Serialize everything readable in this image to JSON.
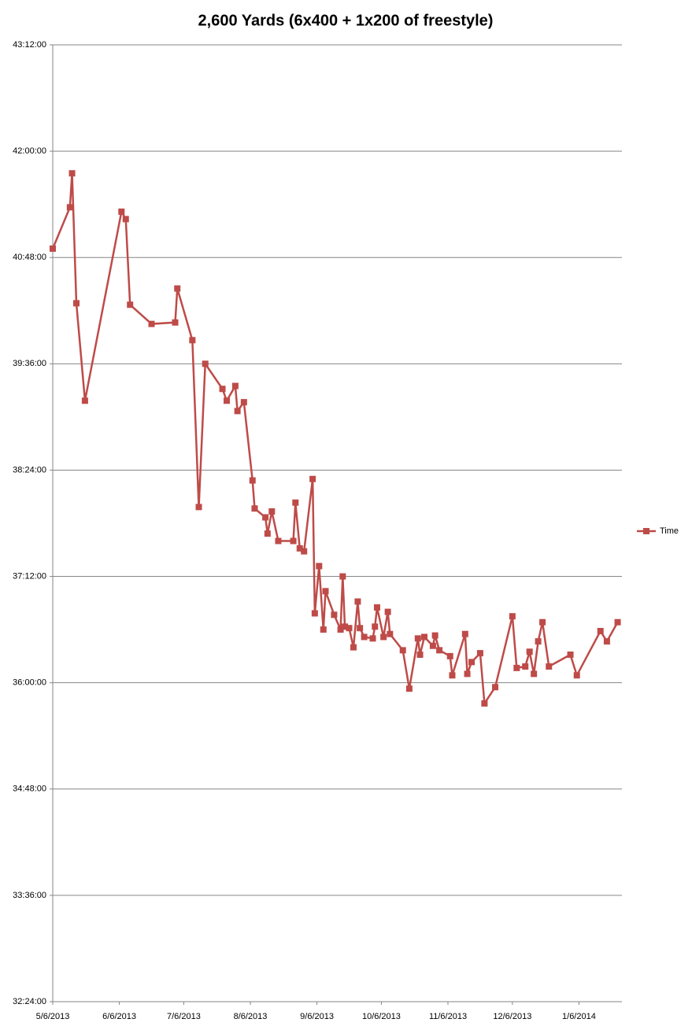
{
  "chart_data": {
    "type": "line",
    "title": "2,600 Yards (6x400 + 1x200 of freestyle)",
    "x": [
      "2013-05-06",
      "2013-05-14",
      "2013-05-15",
      "2013-05-17",
      "2013-05-21",
      "2013-06-07",
      "2013-06-09",
      "2013-06-11",
      "2013-06-21",
      "2013-07-02",
      "2013-07-03",
      "2013-07-10",
      "2013-07-13",
      "2013-07-16",
      "2013-07-24",
      "2013-07-26",
      "2013-07-30",
      "2013-07-31",
      "2013-08-03",
      "2013-08-07",
      "2013-08-08",
      "2013-08-13",
      "2013-08-14",
      "2013-08-16",
      "2013-08-19",
      "2013-08-26",
      "2013-08-27",
      "2013-08-29",
      "2013-08-31",
      "2013-09-04",
      "2013-09-05",
      "2013-09-07",
      "2013-09-09",
      "2013-09-10",
      "2013-09-14",
      "2013-09-17",
      "2013-09-18",
      "2013-09-19",
      "2013-09-21",
      "2013-09-23",
      "2013-09-25",
      "2013-09-26",
      "2013-09-28",
      "2013-10-02",
      "2013-10-03",
      "2013-10-04",
      "2013-10-07",
      "2013-10-09",
      "2013-10-10",
      "2013-10-16",
      "2013-10-19",
      "2013-10-23",
      "2013-10-24",
      "2013-10-26",
      "2013-10-30",
      "2013-10-31",
      "2013-11-02",
      "2013-11-07",
      "2013-11-08",
      "2013-11-14",
      "2013-11-15",
      "2013-11-17",
      "2013-11-21",
      "2013-11-23",
      "2013-11-28",
      "2013-12-06",
      "2013-12-08",
      "2013-12-12",
      "2013-12-14",
      "2013-12-16",
      "2013-12-18",
      "2013-12-20",
      "2013-12-23",
      "2014-01-02",
      "2014-01-05",
      "2014-01-16",
      "2014-01-19",
      "2014-01-24"
    ],
    "series": [
      {
        "name": "Time",
        "color": "#be4b48",
        "values": [
          2454,
          2482,
          2505,
          2417,
          2351,
          2479,
          2474,
          2416,
          2403,
          2404,
          2427,
          2392,
          2279,
          2376,
          2359,
          2351,
          2361,
          2344,
          2350,
          2297,
          2278,
          2272,
          2261,
          2276,
          2256,
          2256,
          2282,
          2251,
          2249,
          2298,
          2207,
          2239,
          2196,
          2222,
          2206,
          2196,
          2232,
          2198,
          2197,
          2184,
          2215,
          2197,
          2191,
          2190,
          2198,
          2211,
          2191,
          2208,
          2193,
          2182,
          2156,
          2190,
          2179,
          2191,
          2185,
          2192,
          2182,
          2178,
          2165,
          2193,
          2166,
          2174,
          2180,
          2146,
          2157,
          2205,
          2170,
          2171,
          2181,
          2166,
          2188,
          2201,
          2171,
          2179,
          2165,
          2195,
          2188,
          2201
        ]
      }
    ],
    "xlim": [
      "2013-05-06",
      "2014-01-26"
    ],
    "xticks": [
      {
        "value": "2013-05-06",
        "label": "5/6/2013"
      },
      {
        "value": "2013-06-06",
        "label": "6/6/2013"
      },
      {
        "value": "2013-07-06",
        "label": "7/6/2013"
      },
      {
        "value": "2013-08-06",
        "label": "8/6/2013"
      },
      {
        "value": "2013-09-06",
        "label": "9/6/2013"
      },
      {
        "value": "2013-10-06",
        "label": "10/6/2013"
      },
      {
        "value": "2013-11-06",
        "label": "11/6/2013"
      },
      {
        "value": "2013-12-06",
        "label": "12/6/2013"
      },
      {
        "value": "2014-01-06",
        "label": "1/6/2014"
      }
    ],
    "ylim": [
      1944,
      2592
    ],
    "yticks": [
      {
        "value": 1944,
        "label": "32:24:00"
      },
      {
        "value": 2016,
        "label": "33:36:00"
      },
      {
        "value": 2088,
        "label": "34:48:00"
      },
      {
        "value": 2160,
        "label": "36:00:00"
      },
      {
        "value": 2232,
        "label": "37:12:00"
      },
      {
        "value": 2304,
        "label": "38:24:00"
      },
      {
        "value": 2376,
        "label": "39:36:00"
      },
      {
        "value": 2448,
        "label": "40:48:00"
      },
      {
        "value": 2520,
        "label": "42:00:00"
      },
      {
        "value": 2592,
        "label": "43:12:00"
      }
    ],
    "grid": true,
    "legend": "right"
  }
}
